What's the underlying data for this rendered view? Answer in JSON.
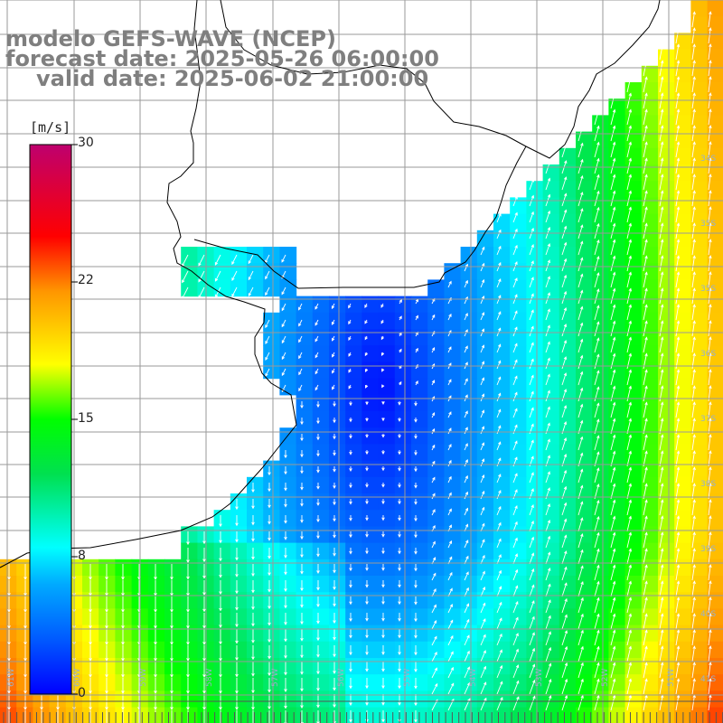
{
  "title": {
    "model": "modelo GEFS-WAVE (NCEP)",
    "forecast": "forecast date: 2025-05-26 06:00:00",
    "valid": "valid date: 2025-06-02 21:00:00"
  },
  "colorbar": {
    "unit": "[m/s]",
    "ticks": [
      "30",
      "22",
      "15",
      "8",
      "0"
    ],
    "range": [
      0,
      30
    ],
    "colors": [
      "#0000ff",
      "#00b4ff",
      "#00ffff",
      "#00e040",
      "#00ff00",
      "#ffff00",
      "#ffa000",
      "#ff0000",
      "#c0006a"
    ]
  },
  "map": {
    "land_color": "#ffffff",
    "grid_color": "#9a9a9a",
    "lon_labels": [
      "61W",
      "60W",
      "59W",
      "58W",
      "57W",
      "56W",
      "55W",
      "54W",
      "53W",
      "52W",
      "51W",
      "50W"
    ],
    "lat_labels": [
      "34S",
      "35S",
      "35S",
      "36S",
      "37S",
      "38S",
      "39S",
      "40S",
      "41S"
    ]
  }
}
